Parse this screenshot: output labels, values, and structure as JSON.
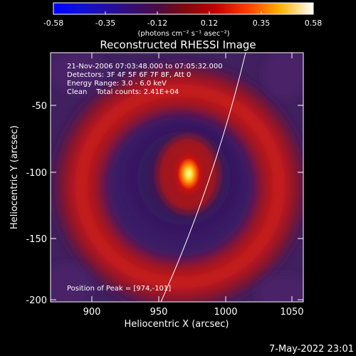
{
  "colorbar": {
    "tick_labels": [
      "-0.58",
      "-0.35",
      "-0.12",
      "0.12",
      "0.35",
      "0.58"
    ],
    "units": "(photons cm⁻² s⁻¹ asec⁻²)"
  },
  "plot": {
    "title": "Reconstructed RHESSI Image",
    "xlabel": "Heliocentric X (arcsec)",
    "ylabel": "Heliocentric Y (arcsec)",
    "x_ticks": [
      "900",
      "950",
      "1000",
      "1050"
    ],
    "y_ticks": [
      "-50",
      "-100",
      "-150",
      "-200"
    ]
  },
  "annotations": {
    "line1": "21-Nov-2006 07:03:48.000 to 07:05:32.000",
    "line2": "Detectors: 3F 4F 5F 6F 7F 8F, Att 0",
    "line3": "Energy Range: 3.0 - 6.0 keV",
    "line4": "Clean    Total counts: 2.41E+04",
    "peak": "Position of Peak = [974,-101]"
  },
  "footer": {
    "timestamp": "7-May-2022 23:01"
  },
  "colors": {
    "background": "#000000",
    "text": "#ffffff"
  }
}
